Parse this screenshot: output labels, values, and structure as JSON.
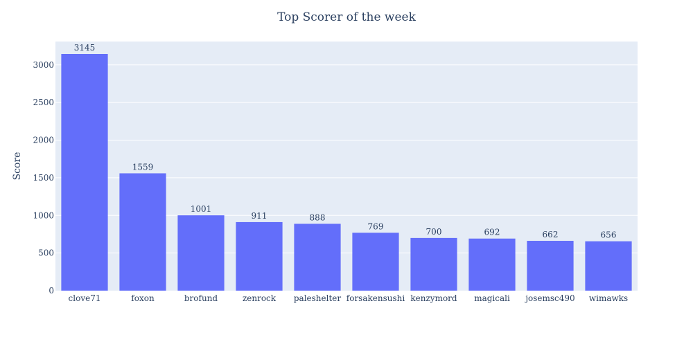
{
  "chart_data": {
    "type": "bar",
    "title": "Top Scorer of the week",
    "xlabel": "",
    "ylabel": "Score",
    "categories": [
      "clove71",
      "foxon",
      "brofund",
      "zenrock",
      "paleshelter",
      "forsakensushi",
      "kenzymord",
      "magicali",
      "josemsc490",
      "wimawks"
    ],
    "values": [
      3145,
      1559,
      1001,
      911,
      888,
      769,
      700,
      692,
      662,
      656
    ],
    "ylim": [
      0,
      3310.5
    ],
    "yticks": [
      0,
      500,
      1000,
      1500,
      2000,
      2500,
      3000
    ],
    "grid": true,
    "legend": "none",
    "colors": {
      "bar": "#636efa",
      "plot_bg": "#e5ecf6",
      "text": "#2a3f5f"
    }
  }
}
